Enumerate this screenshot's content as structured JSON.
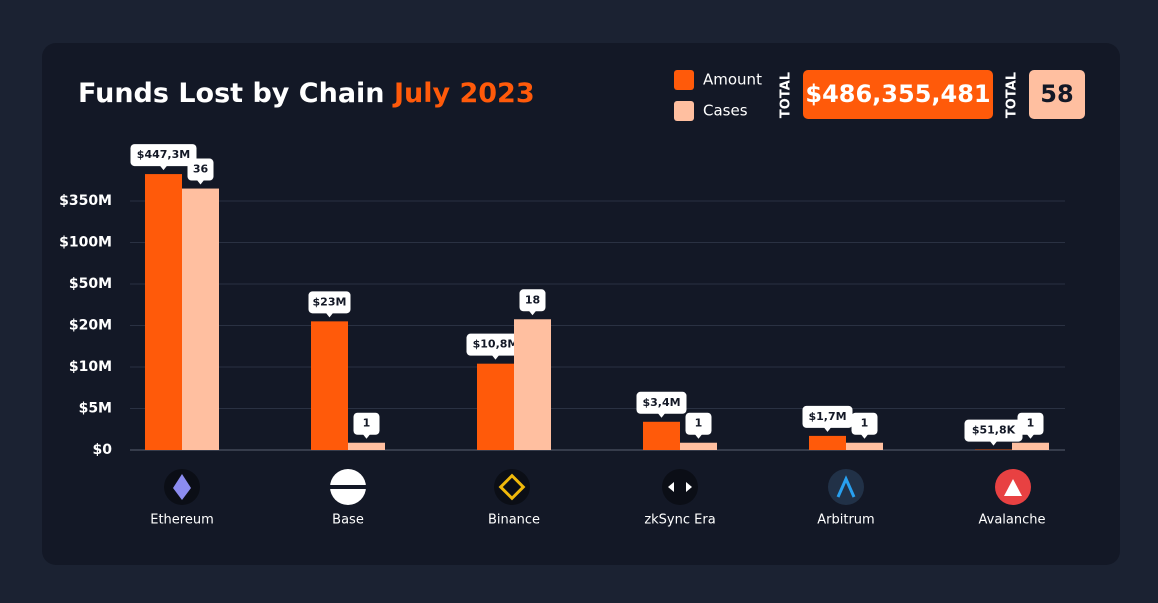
{
  "chart_data": {
    "type": "bar",
    "title": "Funds Lost by Chain",
    "subtitle": "July 2023",
    "categories": [
      "Ethereum",
      "Base",
      "Binance",
      "zkSync Era",
      "Arbitrum",
      "Avalanche"
    ],
    "series": [
      {
        "name": "Amount",
        "color": "#ff5a0a",
        "values": [
          447300000,
          23000000,
          10800000,
          3400000,
          1700000,
          51800
        ],
        "value_labels": [
          "$447,3M",
          "$23M",
          "$10,8M",
          "$3,4M",
          "$1,7M",
          "$51,8K"
        ]
      },
      {
        "name": "Cases",
        "color": "#ffbfa0",
        "axis": "y2",
        "values": [
          36,
          1,
          18,
          1,
          1,
          1
        ]
      }
    ],
    "ylim": [
      0,
      500000000
    ],
    "yticks": [
      {
        "value": 0,
        "label": "$0"
      },
      {
        "value": 5000000,
        "label": "$5M"
      },
      {
        "value": 10000000,
        "label": "$10M"
      },
      {
        "value": 20000000,
        "label": "$20M"
      },
      {
        "value": 50000000,
        "label": "$50M"
      },
      {
        "value": 100000000,
        "label": "$100M"
      },
      {
        "value": 350000000,
        "label": "$350M"
      }
    ],
    "y2lim": [
      0,
      40
    ],
    "grid": true,
    "totals": [
      {
        "label": "TOTAL",
        "value": "$486,355,481"
      },
      {
        "label": "TOTAL",
        "value": "58"
      }
    ]
  }
}
